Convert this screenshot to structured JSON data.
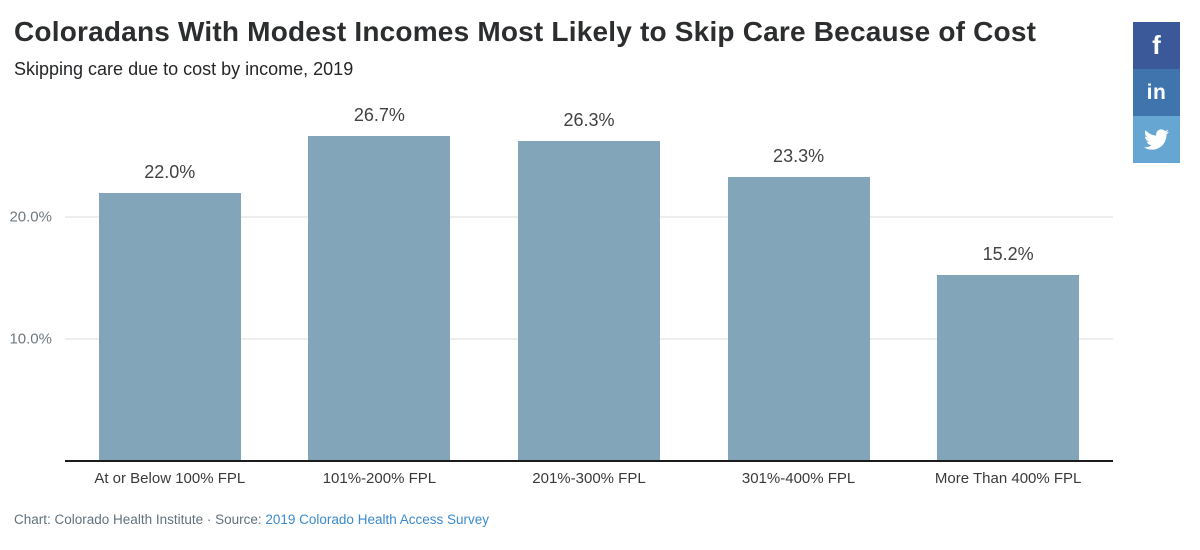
{
  "header": {
    "title": "Coloradans With Modest Incomes Most Likely to Skip Care Because of Cost",
    "subtitle": "Skipping care due to cost by income, 2019"
  },
  "share_buttons": [
    {
      "name": "facebook",
      "glyph": "f",
      "color": "#3b5998"
    },
    {
      "name": "linkedin",
      "glyph": "in",
      "color": "#3f74ad"
    },
    {
      "name": "twitter",
      "glyph": "twitter-bird",
      "color": "#66a6d2"
    }
  ],
  "chart_data": {
    "type": "bar",
    "title": "Coloradans With Modest Incomes Most Likely to Skip Care Because of Cost",
    "subtitle": "Skipping care due to cost by income, 2019",
    "categories": [
      "At or Below 100% FPL",
      "101%-200% FPL",
      "201%-300% FPL",
      "301%-400% FPL",
      "More Than 400% FPL"
    ],
    "values": [
      22.0,
      26.7,
      26.3,
      23.3,
      15.2
    ],
    "data_labels": [
      "22.0%",
      "26.7%",
      "26.3%",
      "23.3%",
      "15.2%"
    ],
    "xlabel": "",
    "ylabel": "",
    "ylim": [
      0,
      28
    ],
    "yticks": [
      {
        "value": 10,
        "label": "10.0%"
      },
      {
        "value": 20,
        "label": "20.0%"
      }
    ],
    "grid": true,
    "legend_position": "none",
    "bar_color": "#83a5ba"
  },
  "footer": {
    "prefix": "Chart: Colorado Health Institute · Source: ",
    "link_text": "2019 Colorado Health Access Survey"
  },
  "colors": {
    "bar": "#83a5ba",
    "axis_line": "#1c1c1c",
    "gridline": "#dcdcdc",
    "tick_label": "#70787f",
    "title_text": "#2b2d2e",
    "footer_text": "#61727e",
    "link": "#3b8ace",
    "facebook_blue": "#3b5998",
    "linkedin_blue": "#3f74ad",
    "twitter_blue": "#66a6d2"
  }
}
